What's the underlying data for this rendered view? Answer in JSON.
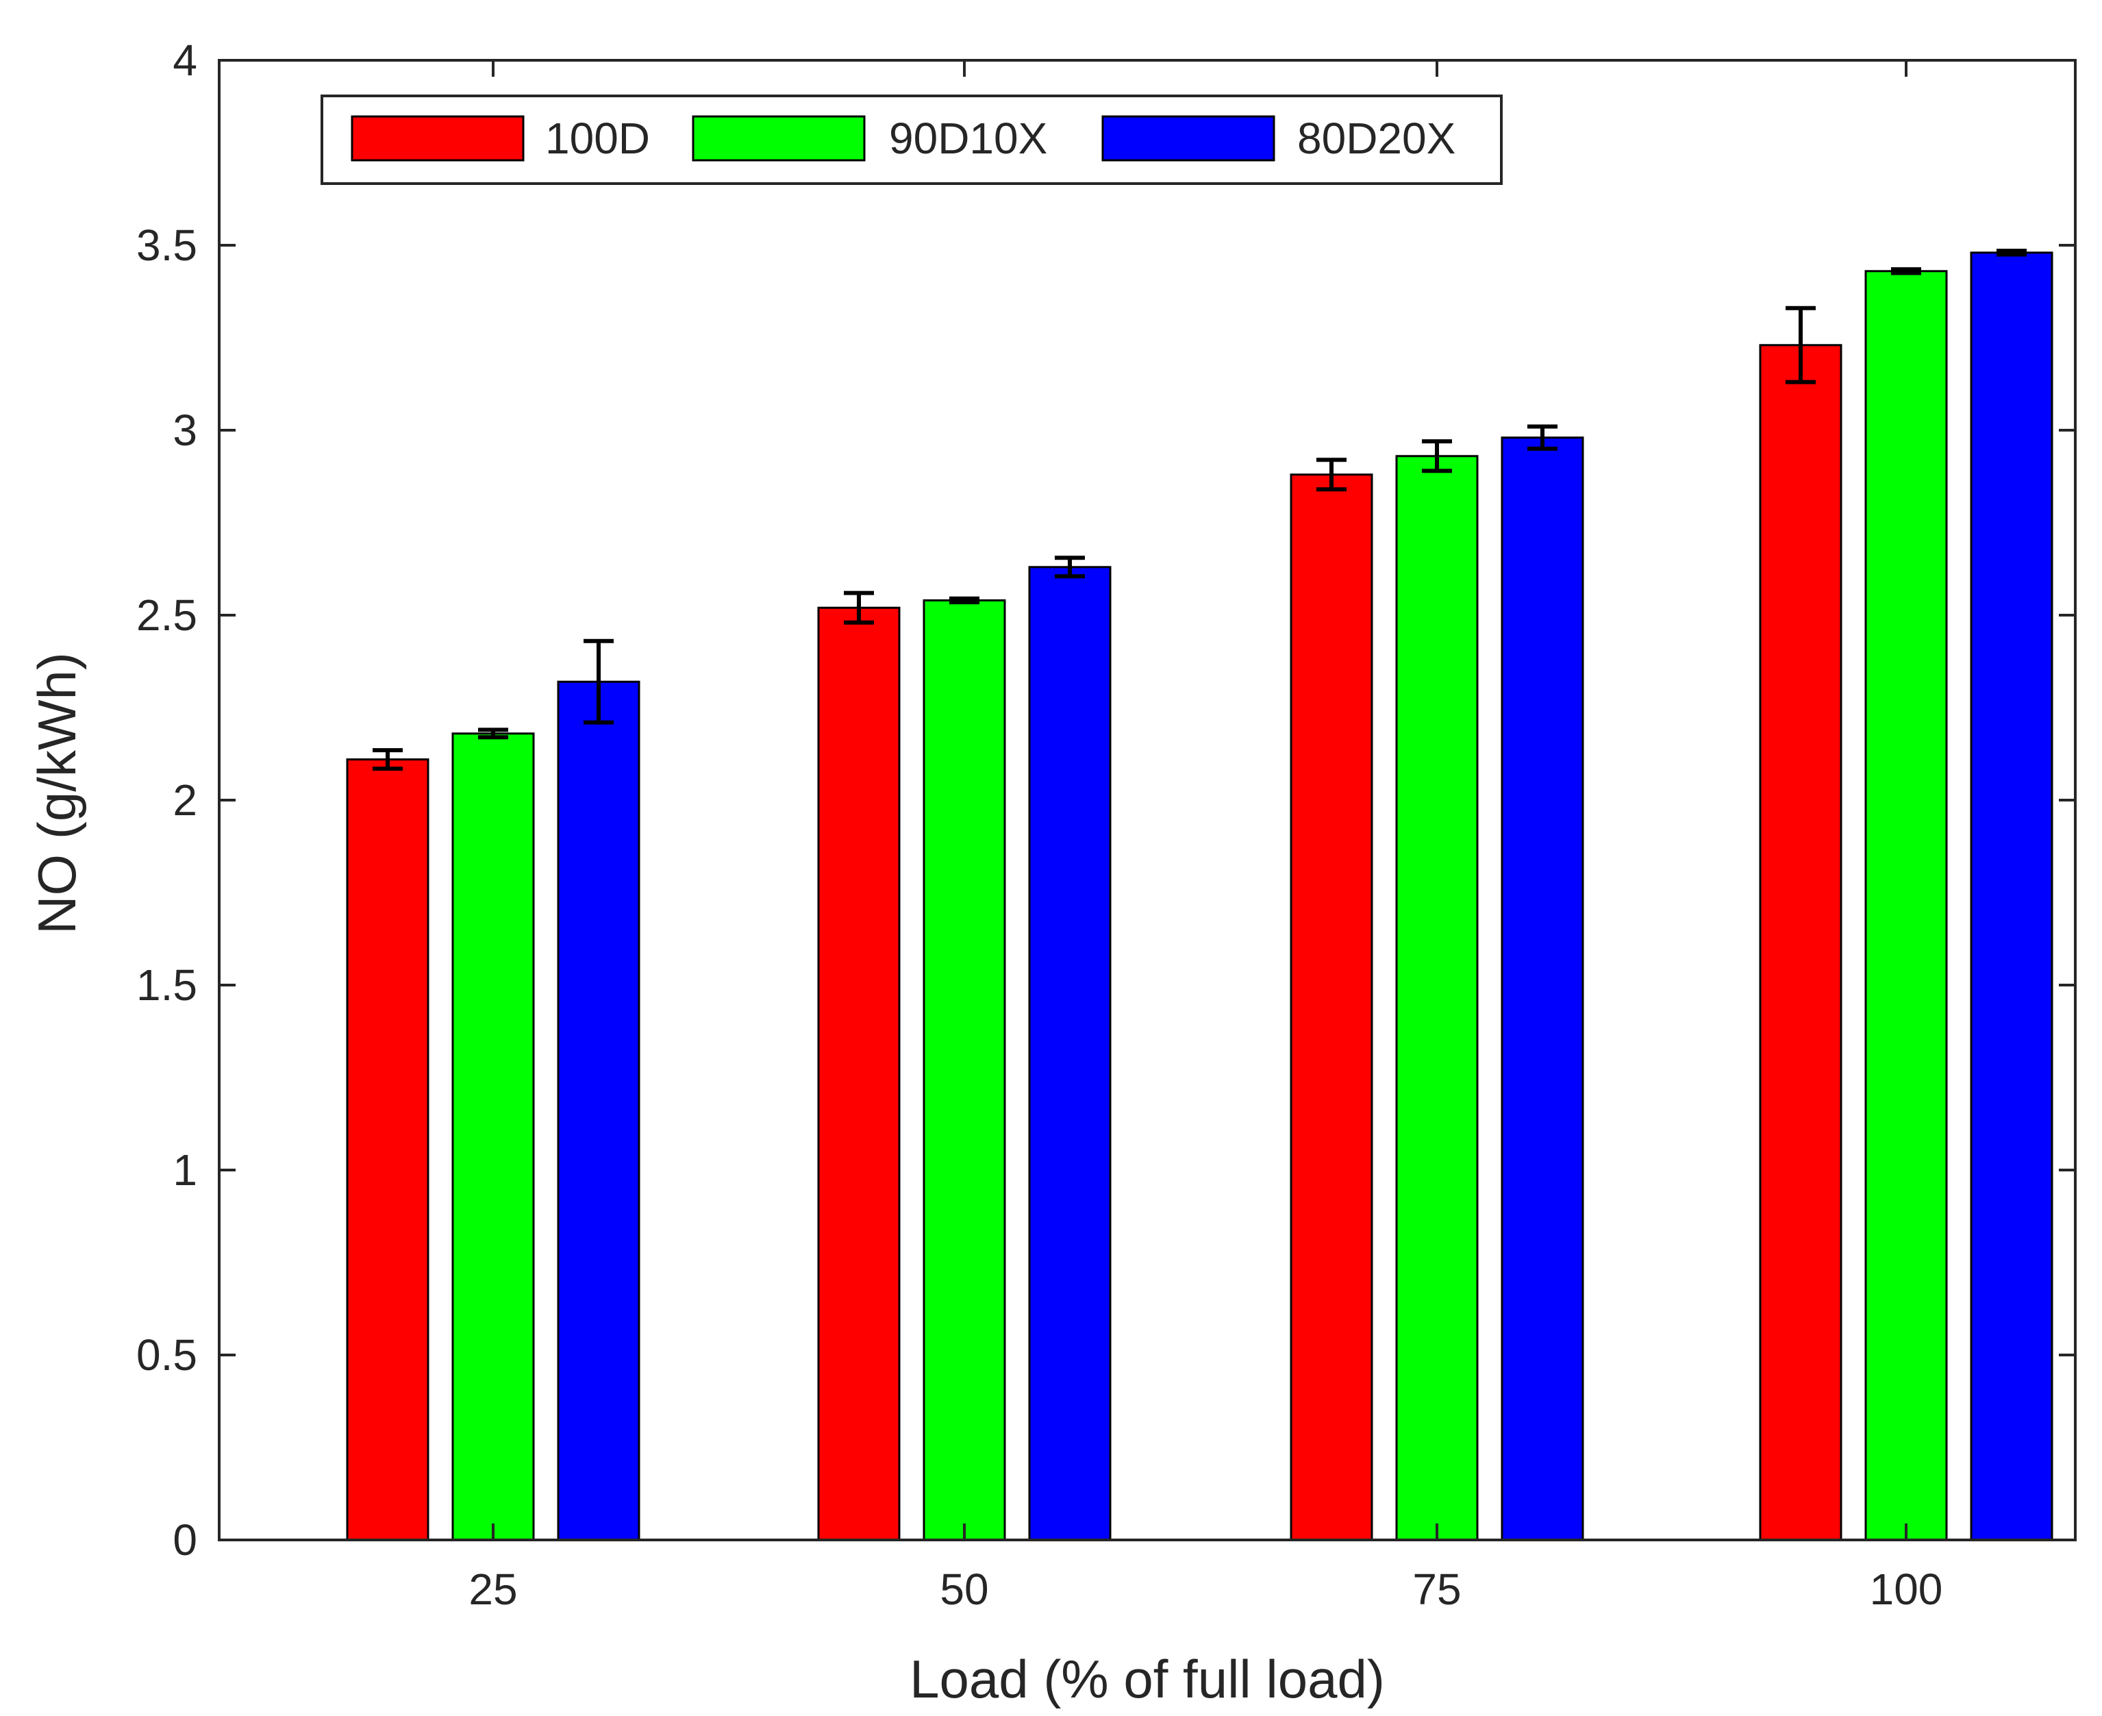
{
  "chart_data": {
    "type": "bar",
    "title": "",
    "xlabel": "Load (% of full load)",
    "ylabel": "NO (g/kWh)",
    "categories": [
      "25",
      "50",
      "75",
      "100"
    ],
    "ylim": [
      0,
      4
    ],
    "yticks": [
      "0",
      "0.5",
      "1",
      "1.5",
      "2",
      "2.5",
      "3",
      "3.5",
      "4"
    ],
    "grid": false,
    "legend_position": "top-left",
    "legend_orientation": "horizontal",
    "series": [
      {
        "name": "100D",
        "color": "#ff0000",
        "values": [
          2.11,
          2.52,
          2.88,
          3.23
        ],
        "errors": [
          0.025,
          0.04,
          0.04,
          0.1
        ]
      },
      {
        "name": "90D10X",
        "color": "#00ff00",
        "values": [
          2.18,
          2.54,
          2.93,
          3.43
        ],
        "errors": [
          0.01,
          0.005,
          0.04,
          0.005
        ]
      },
      {
        "name": "80D20X",
        "color": "#0000ff",
        "values": [
          2.32,
          2.63,
          2.98,
          3.48
        ],
        "errors": [
          0.11,
          0.025,
          0.03,
          0.005
        ]
      }
    ]
  }
}
